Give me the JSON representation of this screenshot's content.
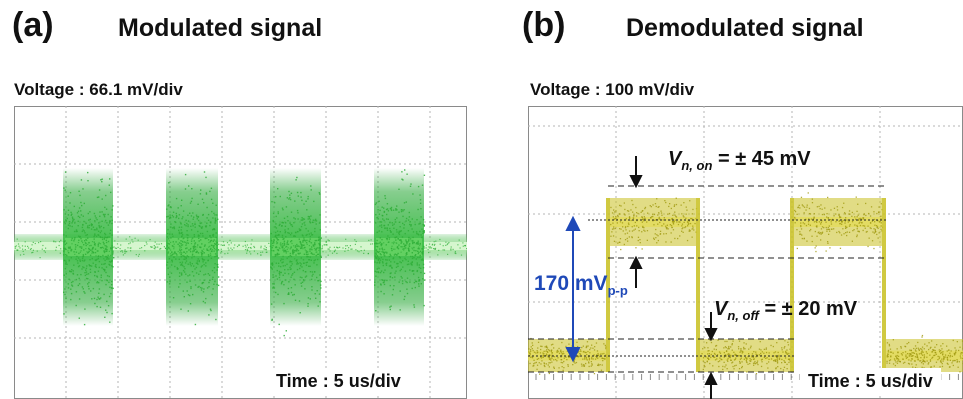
{
  "panel_a": {
    "letter": "(a)",
    "title": "Modulated signal",
    "voltage_scale": "Voltage : 66.1 mV/div",
    "time_scale": "Time : 5 us/div",
    "trace_color": "#2fae38"
  },
  "panel_b": {
    "letter": "(b)",
    "title": "Demodulated signal",
    "voltage_scale": "Voltage : 100 mV/div",
    "time_scale": "Time : 5 us/div",
    "trace_color": "#c8c020",
    "noise_on": {
      "symbol": "V",
      "subscript": "n, on",
      "value": "= ± 45 mV"
    },
    "noise_off": {
      "symbol": "V",
      "subscript": "n, off",
      "value": "= ± 20 mV"
    },
    "peak_to_peak": {
      "value": "170 mV",
      "subscript": "p-p"
    }
  }
}
